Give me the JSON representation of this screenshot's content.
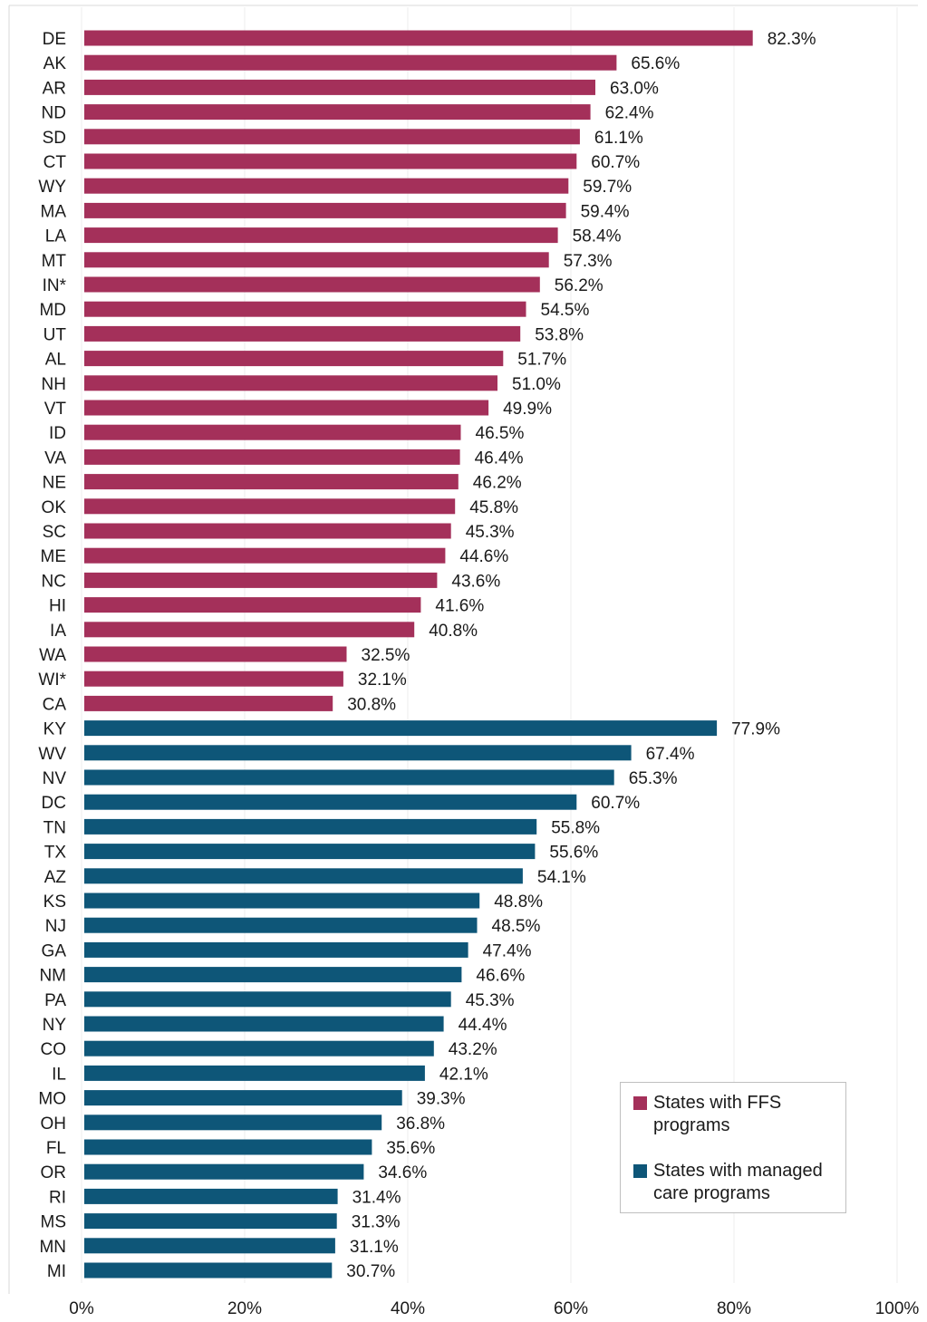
{
  "chart_data": {
    "type": "bar",
    "orientation": "horizontal",
    "xlim": [
      0,
      100
    ],
    "x_ticks": [
      "0%",
      "20%",
      "40%",
      "60%",
      "80%",
      "100%"
    ],
    "grid": "vertical",
    "legend_position": "bottom-right",
    "colors": {
      "ffs": "#A4305A",
      "managed": "#0E5678"
    },
    "series": [
      {
        "name": "States with FFS programs",
        "key": "ffs",
        "categories": [
          "DE",
          "AK",
          "AR",
          "ND",
          "SD",
          "CT",
          "WY",
          "MA",
          "LA",
          "MT",
          "IN*",
          "MD",
          "UT",
          "AL",
          "NH",
          "VT",
          "ID",
          "VA",
          "NE",
          "OK",
          "SC",
          "ME",
          "NC",
          "HI",
          "IA",
          "WA",
          "WI*",
          "CA"
        ],
        "values": [
          82.3,
          65.6,
          63.0,
          62.4,
          61.1,
          60.7,
          59.7,
          59.4,
          58.4,
          57.3,
          56.2,
          54.5,
          53.8,
          51.7,
          51.0,
          49.9,
          46.5,
          46.4,
          46.2,
          45.8,
          45.3,
          44.6,
          43.6,
          41.6,
          40.8,
          32.5,
          32.1,
          30.8
        ],
        "labels": [
          "82.3%",
          "65.6%",
          "63.0%",
          "62.4%",
          "61.1%",
          "60.7%",
          "59.7%",
          "59.4%",
          "58.4%",
          "57.3%",
          "56.2%",
          "54.5%",
          "53.8%",
          "51.7%",
          "51.0%",
          "49.9%",
          "46.5%",
          "46.4%",
          "46.2%",
          "45.8%",
          "45.3%",
          "44.6%",
          "43.6%",
          "41.6%",
          "40.8%",
          "32.5%",
          "32.1%",
          "30.8%"
        ]
      },
      {
        "name": "States with managed care programs",
        "key": "managed",
        "categories": [
          "KY",
          "WV",
          "NV",
          "DC",
          "TN",
          "TX",
          "AZ",
          "KS",
          "NJ",
          "GA",
          "NM",
          "PA",
          "NY",
          "CO",
          "IL",
          "MO",
          "OH",
          "FL",
          "OR",
          "RI",
          "MS",
          "MN",
          "MI"
        ],
        "values": [
          77.9,
          67.4,
          65.3,
          60.7,
          55.8,
          55.6,
          54.1,
          48.8,
          48.5,
          47.4,
          46.6,
          45.3,
          44.4,
          43.2,
          42.1,
          39.3,
          36.8,
          35.6,
          34.6,
          31.4,
          31.3,
          31.1,
          30.7
        ],
        "labels": [
          "77.9%",
          "67.4%",
          "65.3%",
          "60.7%",
          "55.8%",
          "55.6%",
          "54.1%",
          "48.8%",
          "48.5%",
          "47.4%",
          "46.6%",
          "45.3%",
          "44.4%",
          "43.2%",
          "42.1%",
          "39.3%",
          "36.8%",
          "35.6%",
          "34.6%",
          "31.4%",
          "31.3%",
          "31.1%",
          "30.7%"
        ]
      }
    ]
  },
  "legend": {
    "ffs_label_line1": "States with FFS",
    "ffs_label_line2": "programs",
    "managed_label_line1": "States with managed",
    "managed_label_line2": "care programs"
  }
}
